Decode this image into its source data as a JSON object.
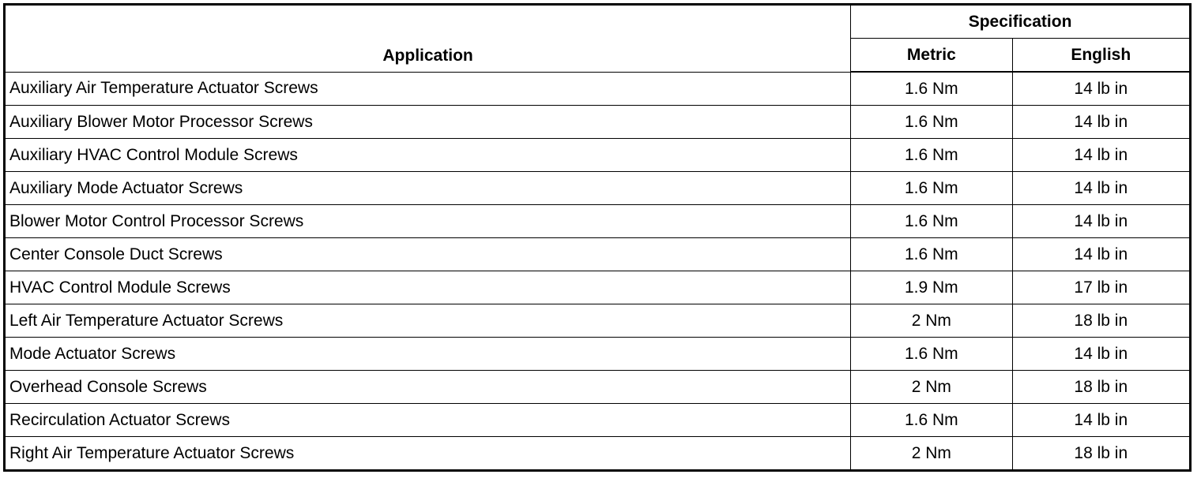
{
  "headers": {
    "application": "Application",
    "specification": "Specification",
    "metric": "Metric",
    "english": "English"
  },
  "rows": [
    {
      "application": "Auxiliary Air Temperature Actuator Screws",
      "metric": "1.6 Nm",
      "english": "14 lb in"
    },
    {
      "application": "Auxiliary Blower Motor Processor Screws",
      "metric": "1.6 Nm",
      "english": "14 lb in"
    },
    {
      "application": "Auxiliary HVAC Control Module Screws",
      "metric": "1.6 Nm",
      "english": "14 lb in"
    },
    {
      "application": "Auxiliary Mode Actuator Screws",
      "metric": "1.6 Nm",
      "english": "14 lb in"
    },
    {
      "application": "Blower Motor Control Processor Screws",
      "metric": "1.6 Nm",
      "english": "14 lb in"
    },
    {
      "application": "Center Console Duct Screws",
      "metric": "1.6 Nm",
      "english": "14 lb in"
    },
    {
      "application": "HVAC Control Module Screws",
      "metric": "1.9 Nm",
      "english": "17 lb in"
    },
    {
      "application": "Left Air Temperature Actuator Screws",
      "metric": "2 Nm",
      "english": "18 lb in"
    },
    {
      "application": "Mode Actuator Screws",
      "metric": "1.6 Nm",
      "english": "14 lb in"
    },
    {
      "application": "Overhead Console Screws",
      "metric": "2 Nm",
      "english": "18 lb in"
    },
    {
      "application": "Recirculation Actuator Screws",
      "metric": "1.6 Nm",
      "english": "14 lb in"
    },
    {
      "application": "Right Air Temperature Actuator Screws",
      "metric": "2 Nm",
      "english": "18 lb in"
    }
  ]
}
